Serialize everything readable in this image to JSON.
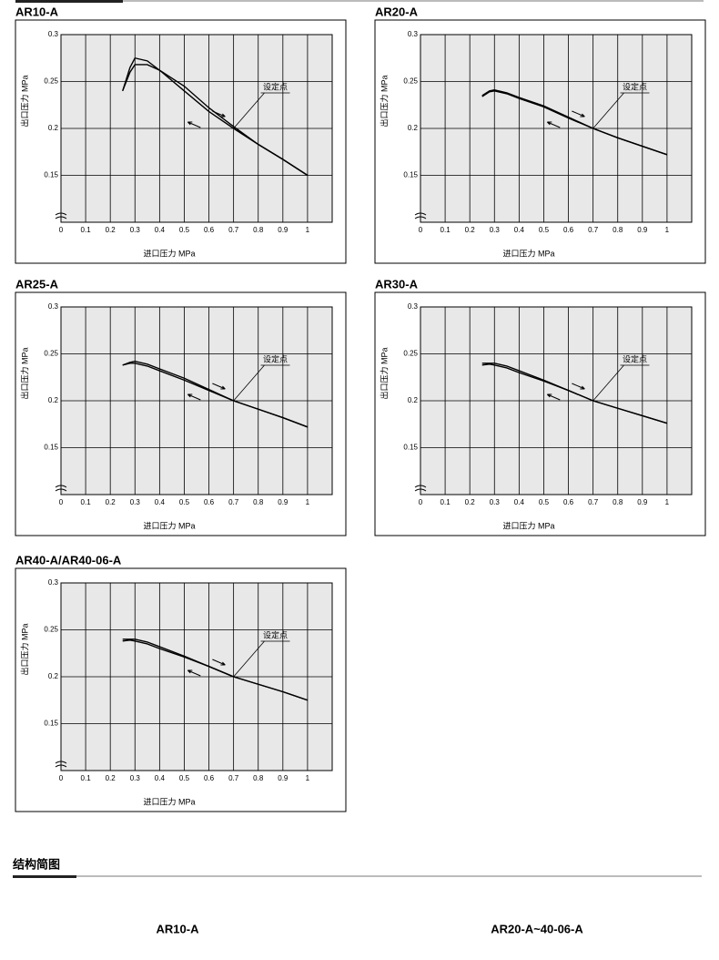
{
  "chart_data": [
    {
      "type": "line",
      "title": "AR10-A",
      "xlabel": "进口压力 MPa",
      "ylabel": "出口压力 MPa",
      "annotation": "设定点",
      "x": [
        0.25,
        0.28,
        0.3,
        0.35,
        0.4,
        0.5,
        0.6,
        0.7,
        0.8,
        0.9,
        1.0
      ],
      "series": [
        {
          "color": "#000000",
          "values": [
            0.24,
            0.265,
            0.275,
            0.272,
            0.262,
            0.24,
            0.218,
            0.2,
            0.183,
            0.167,
            0.15
          ]
        },
        {
          "color": "#000000",
          "values": [
            0.24,
            0.26,
            0.268,
            0.268,
            0.262,
            0.245,
            0.222,
            0.202,
            0.183,
            0.167,
            0.15
          ]
        }
      ],
      "xlim": [
        0,
        1.1
      ],
      "xticks": [
        0,
        0.1,
        0.2,
        0.3,
        0.4,
        0.5,
        0.6,
        0.7,
        0.8,
        0.9,
        1
      ],
      "ylim": [
        0.1,
        0.3
      ],
      "yticks": [
        0.15,
        0.2,
        0.25,
        0.3
      ],
      "grid": true
    },
    {
      "type": "line",
      "title": "AR20-A",
      "xlabel": "进口压力 MPa",
      "ylabel": "出口压力 MPa",
      "annotation": "设定点",
      "x": [
        0.25,
        0.28,
        0.3,
        0.35,
        0.4,
        0.5,
        0.6,
        0.7,
        0.8,
        0.9,
        1.0
      ],
      "series": [
        {
          "color": "#000000",
          "values": [
            0.235,
            0.24,
            0.241,
            0.238,
            0.233,
            0.224,
            0.212,
            0.2,
            0.19,
            0.181,
            0.172
          ]
        },
        {
          "color": "#000000",
          "values": [
            0.234,
            0.239,
            0.24,
            0.237,
            0.232,
            0.223,
            0.211,
            0.2,
            0.19,
            0.181,
            0.172
          ]
        }
      ],
      "xlim": [
        0,
        1.1
      ],
      "xticks": [
        0,
        0.1,
        0.2,
        0.3,
        0.4,
        0.5,
        0.6,
        0.7,
        0.8,
        0.9,
        1
      ],
      "ylim": [
        0.1,
        0.3
      ],
      "yticks": [
        0.15,
        0.2,
        0.25,
        0.3
      ],
      "grid": true
    },
    {
      "type": "line",
      "title": "AR25-A",
      "xlabel": "进口压力 MPa",
      "ylabel": "出口压力 MPa",
      "annotation": "设定点",
      "x": [
        0.25,
        0.28,
        0.3,
        0.35,
        0.4,
        0.5,
        0.6,
        0.7,
        0.8,
        0.9,
        1.0
      ],
      "series": [
        {
          "color": "#000000",
          "values": [
            0.238,
            0.241,
            0.242,
            0.239,
            0.234,
            0.224,
            0.212,
            0.2,
            0.191,
            0.182,
            0.172
          ]
        },
        {
          "color": "#000000",
          "values": [
            0.238,
            0.24,
            0.24,
            0.237,
            0.232,
            0.222,
            0.211,
            0.2,
            0.191,
            0.182,
            0.172
          ]
        }
      ],
      "xlim": [
        0,
        1.1
      ],
      "xticks": [
        0,
        0.1,
        0.2,
        0.3,
        0.4,
        0.5,
        0.6,
        0.7,
        0.8,
        0.9,
        1
      ],
      "ylim": [
        0.1,
        0.3
      ],
      "yticks": [
        0.15,
        0.2,
        0.25,
        0.3
      ],
      "grid": true
    },
    {
      "type": "line",
      "title": "AR30-A",
      "xlabel": "进口压力 MPa",
      "ylabel": "出口压力 MPa",
      "annotation": "设定点",
      "x": [
        0.25,
        0.28,
        0.3,
        0.35,
        0.4,
        0.5,
        0.6,
        0.7,
        0.8,
        0.9,
        1.0
      ],
      "series": [
        {
          "color": "#000000",
          "values": [
            0.24,
            0.24,
            0.24,
            0.237,
            0.232,
            0.222,
            0.211,
            0.2,
            0.192,
            0.184,
            0.176
          ]
        },
        {
          "color": "#000000",
          "values": [
            0.238,
            0.239,
            0.238,
            0.235,
            0.23,
            0.221,
            0.211,
            0.2,
            0.192,
            0.184,
            0.176
          ]
        }
      ],
      "xlim": [
        0,
        1.1
      ],
      "xticks": [
        0,
        0.1,
        0.2,
        0.3,
        0.4,
        0.5,
        0.6,
        0.7,
        0.8,
        0.9,
        1
      ],
      "ylim": [
        0.1,
        0.3
      ],
      "yticks": [
        0.15,
        0.2,
        0.25,
        0.3
      ],
      "grid": true
    },
    {
      "type": "line",
      "title": "AR40-A/AR40-06-A",
      "xlabel": "进口压力 MPa",
      "ylabel": "出口压力 MPa",
      "annotation": "设定点",
      "x": [
        0.25,
        0.28,
        0.3,
        0.35,
        0.4,
        0.5,
        0.6,
        0.7,
        0.8,
        0.9,
        1.0
      ],
      "series": [
        {
          "color": "#000000",
          "values": [
            0.24,
            0.24,
            0.24,
            0.237,
            0.232,
            0.222,
            0.211,
            0.2,
            0.192,
            0.184,
            0.175
          ]
        },
        {
          "color": "#000000",
          "values": [
            0.238,
            0.239,
            0.238,
            0.235,
            0.23,
            0.221,
            0.211,
            0.2,
            0.192,
            0.184,
            0.175
          ]
        }
      ],
      "xlim": [
        0,
        1.1
      ],
      "xticks": [
        0,
        0.1,
        0.2,
        0.3,
        0.4,
        0.5,
        0.6,
        0.7,
        0.8,
        0.9,
        1
      ],
      "ylim": [
        0.1,
        0.3
      ],
      "yticks": [
        0.15,
        0.2,
        0.25,
        0.3
      ],
      "grid": true
    }
  ],
  "section": {
    "title": "结构简图",
    "labels": [
      "AR10-A",
      "AR20-A~40-06-A"
    ]
  }
}
